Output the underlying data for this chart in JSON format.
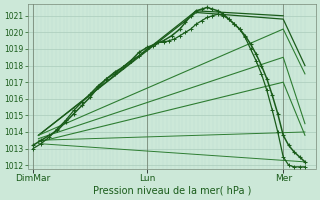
{
  "bg_color": "#cce8d8",
  "grid_major_color": "#aaccbb",
  "grid_minor_color": "#bbddd0",
  "line_color_dark": "#1a5c1a",
  "line_color_mid": "#2e7d32",
  "ylim": [
    1011.8,
    1021.7
  ],
  "yticks": [
    1012,
    1013,
    1014,
    1015,
    1016,
    1017,
    1018,
    1019,
    1020,
    1021
  ],
  "xlabel": "Pression niveau de la mer( hPa )",
  "xtick_labels": [
    "DimMar",
    "Lun",
    "Mer"
  ],
  "xtick_positions": [
    0.0,
    0.42,
    0.92
  ],
  "xlim": [
    -0.02,
    1.04
  ],
  "figsize": [
    3.2,
    2.0
  ],
  "dpi": 100,
  "wavy_line": {
    "x": [
      0.0,
      0.03,
      0.06,
      0.09,
      0.12,
      0.15,
      0.18,
      0.21,
      0.24,
      0.27,
      0.3,
      0.33,
      0.36,
      0.39,
      0.42,
      0.45,
      0.48,
      0.51,
      0.54,
      0.56,
      0.58,
      0.6,
      0.62,
      0.64,
      0.66,
      0.68,
      0.7,
      0.72,
      0.74,
      0.76,
      0.78,
      0.8,
      0.82,
      0.84,
      0.86,
      0.88,
      0.9,
      0.92,
      0.94,
      0.96,
      0.98,
      1.0
    ],
    "y": [
      1013.2,
      1013.5,
      1013.8,
      1014.1,
      1014.6,
      1015.1,
      1015.6,
      1016.1,
      1016.7,
      1017.2,
      1017.6,
      1017.9,
      1018.3,
      1018.8,
      1019.1,
      1019.3,
      1019.5,
      1019.8,
      1020.2,
      1020.6,
      1021.0,
      1021.3,
      1021.4,
      1021.5,
      1021.4,
      1021.3,
      1021.1,
      1020.8,
      1020.5,
      1020.2,
      1019.8,
      1019.3,
      1018.7,
      1018.0,
      1017.2,
      1016.2,
      1015.1,
      1013.8,
      1013.2,
      1012.8,
      1012.5,
      1012.2
    ]
  },
  "bumpy_line": {
    "x": [
      0.0,
      0.03,
      0.06,
      0.09,
      0.12,
      0.15,
      0.18,
      0.21,
      0.24,
      0.27,
      0.3,
      0.33,
      0.36,
      0.39,
      0.42,
      0.44,
      0.46,
      0.48,
      0.5,
      0.52,
      0.54,
      0.56,
      0.58,
      0.6,
      0.62,
      0.64,
      0.66,
      0.68,
      0.7,
      0.72,
      0.74,
      0.76,
      0.78,
      0.8,
      0.82,
      0.84,
      0.86,
      0.88,
      0.9,
      0.92,
      0.94,
      0.96,
      0.98,
      1.0
    ],
    "y": [
      1013.0,
      1013.3,
      1013.7,
      1014.2,
      1014.7,
      1015.3,
      1015.8,
      1016.3,
      1016.8,
      1017.2,
      1017.5,
      1017.9,
      1018.3,
      1018.6,
      1019.0,
      1019.2,
      1019.4,
      1019.4,
      1019.5,
      1019.6,
      1019.8,
      1020.0,
      1020.2,
      1020.5,
      1020.7,
      1020.9,
      1021.0,
      1021.1,
      1021.0,
      1020.8,
      1020.5,
      1020.2,
      1019.7,
      1019.0,
      1018.3,
      1017.5,
      1016.5,
      1015.3,
      1014.0,
      1012.5,
      1012.0,
      1011.9,
      1011.9,
      1011.9
    ]
  },
  "fan_lines": [
    {
      "x": [
        0.02,
        0.6,
        0.92
      ],
      "y": [
        1013.8,
        1021.3,
        1021.0
      ]
    },
    {
      "x": [
        0.02,
        0.6,
        0.92,
        1.0
      ],
      "y": [
        1013.8,
        1021.2,
        1020.8,
        1018.0
      ]
    },
    {
      "x": [
        0.02,
        0.92,
        1.0
      ],
      "y": [
        1013.8,
        1020.2,
        1017.5
      ]
    },
    {
      "x": [
        0.02,
        0.92,
        1.0
      ],
      "y": [
        1013.6,
        1018.5,
        1014.5
      ]
    },
    {
      "x": [
        0.02,
        0.92,
        1.0
      ],
      "y": [
        1013.4,
        1017.0,
        1013.8
      ]
    },
    {
      "x": [
        0.02,
        1.0
      ],
      "y": [
        1013.5,
        1014.0
      ]
    },
    {
      "x": [
        0.02,
        1.0
      ],
      "y": [
        1013.3,
        1012.2
      ]
    }
  ]
}
